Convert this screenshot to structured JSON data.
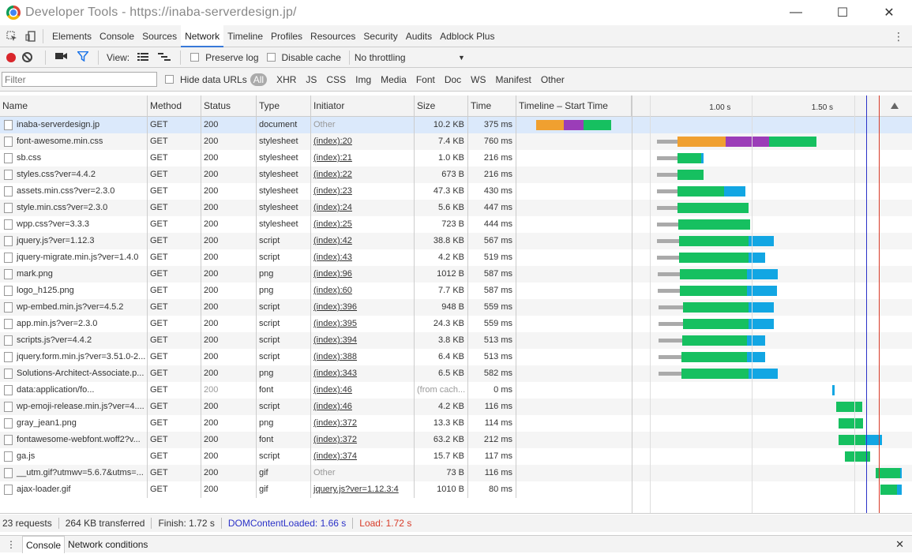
{
  "window": {
    "title": "Developer Tools - https://inaba-serverdesign.jp/",
    "minimize": "—",
    "maximize": "☐",
    "close": "✕"
  },
  "tabs": [
    "Elements",
    "Console",
    "Sources",
    "Network",
    "Timeline",
    "Profiles",
    "Resources",
    "Security",
    "Audits",
    "Adblock Plus"
  ],
  "active_tab": "Network",
  "toolbar": {
    "view_label": "View:",
    "preserve_log": "Preserve log",
    "disable_cache": "Disable cache",
    "throttling": "No throttling"
  },
  "filterbar": {
    "placeholder": "Filter",
    "hide_data_urls": "Hide data URLs",
    "types": [
      "All",
      "XHR",
      "JS",
      "CSS",
      "Img",
      "Media",
      "Font",
      "Doc",
      "WS",
      "Manifest",
      "Other"
    ]
  },
  "columns": [
    "Name",
    "Method",
    "Status",
    "Type",
    "Initiator",
    "Size",
    "Time",
    "Timeline – Start Time"
  ],
  "timeline_ticks": [
    "1.00 s",
    "1.50 s"
  ],
  "requests": [
    {
      "name": "inaba-serverdesign.jp",
      "method": "GET",
      "status": "200",
      "type": "document",
      "initiator": "Other",
      "size": "10.2 KB",
      "time": "375 ms",
      "selected": true
    },
    {
      "name": "font-awesome.min.css",
      "method": "GET",
      "status": "200",
      "type": "stylesheet",
      "initiator": "(index):20",
      "size": "7.4 KB",
      "time": "760 ms"
    },
    {
      "name": "sb.css",
      "method": "GET",
      "status": "200",
      "type": "stylesheet",
      "initiator": "(index):21",
      "size": "1.0 KB",
      "time": "216 ms"
    },
    {
      "name": "styles.css?ver=4.4.2",
      "method": "GET",
      "status": "200",
      "type": "stylesheet",
      "initiator": "(index):22",
      "size": "673 B",
      "time": "216 ms"
    },
    {
      "name": "assets.min.css?ver=2.3.0",
      "method": "GET",
      "status": "200",
      "type": "stylesheet",
      "initiator": "(index):23",
      "size": "47.3 KB",
      "time": "430 ms"
    },
    {
      "name": "style.min.css?ver=2.3.0",
      "method": "GET",
      "status": "200",
      "type": "stylesheet",
      "initiator": "(index):24",
      "size": "5.6 KB",
      "time": "447 ms"
    },
    {
      "name": "wpp.css?ver=3.3.3",
      "method": "GET",
      "status": "200",
      "type": "stylesheet",
      "initiator": "(index):25",
      "size": "723 B",
      "time": "444 ms"
    },
    {
      "name": "jquery.js?ver=1.12.3",
      "method": "GET",
      "status": "200",
      "type": "script",
      "initiator": "(index):42",
      "size": "38.8 KB",
      "time": "567 ms"
    },
    {
      "name": "jquery-migrate.min.js?ver=1.4.0",
      "method": "GET",
      "status": "200",
      "type": "script",
      "initiator": "(index):43",
      "size": "4.2 KB",
      "time": "519 ms"
    },
    {
      "name": "mark.png",
      "method": "GET",
      "status": "200",
      "type": "png",
      "initiator": "(index):96",
      "size": "1012 B",
      "time": "587 ms"
    },
    {
      "name": "logo_h125.png",
      "method": "GET",
      "status": "200",
      "type": "png",
      "initiator": "(index):60",
      "size": "7.7 KB",
      "time": "587 ms"
    },
    {
      "name": "wp-embed.min.js?ver=4.5.2",
      "method": "GET",
      "status": "200",
      "type": "script",
      "initiator": "(index):396",
      "size": "948 B",
      "time": "559 ms"
    },
    {
      "name": "app.min.js?ver=2.3.0",
      "method": "GET",
      "status": "200",
      "type": "script",
      "initiator": "(index):395",
      "size": "24.3 KB",
      "time": "559 ms"
    },
    {
      "name": "scripts.js?ver=4.4.2",
      "method": "GET",
      "status": "200",
      "type": "script",
      "initiator": "(index):394",
      "size": "3.8 KB",
      "time": "513 ms"
    },
    {
      "name": "jquery.form.min.js?ver=3.51.0-2...",
      "method": "GET",
      "status": "200",
      "type": "script",
      "initiator": "(index):388",
      "size": "6.4 KB",
      "time": "513 ms"
    },
    {
      "name": "Solutions-Architect-Associate.p...",
      "method": "GET",
      "status": "200",
      "type": "png",
      "initiator": "(index):343",
      "size": "6.5 KB",
      "time": "582 ms"
    },
    {
      "name": "data:application/fo...",
      "method": "GET",
      "status": "200",
      "type": "font",
      "initiator": "(index):46",
      "size": "(from cach...",
      "time": "0 ms",
      "grey": true
    },
    {
      "name": "wp-emoji-release.min.js?ver=4....",
      "method": "GET",
      "status": "200",
      "type": "script",
      "initiator": "(index):46",
      "size": "4.2 KB",
      "time": "116 ms"
    },
    {
      "name": "gray_jean1.png",
      "method": "GET",
      "status": "200",
      "type": "png",
      "initiator": "(index):372",
      "size": "13.3 KB",
      "time": "114 ms"
    },
    {
      "name": "fontawesome-webfont.woff2?v...",
      "method": "GET",
      "status": "200",
      "type": "font",
      "initiator": "(index):372",
      "size": "63.2 KB",
      "time": "212 ms"
    },
    {
      "name": "ga.js",
      "method": "GET",
      "status": "200",
      "type": "script",
      "initiator": "(index):374",
      "size": "15.7 KB",
      "time": "117 ms"
    },
    {
      "name": "__utm.gif?utmwv=5.6.7&utms=...",
      "method": "GET",
      "status": "200",
      "type": "gif",
      "initiator": "Other",
      "size": "73 B",
      "time": "116 ms"
    },
    {
      "name": "ajax-loader.gif",
      "method": "GET",
      "status": "200",
      "type": "gif",
      "initiator": "jquery.js?ver=1.12.3:4",
      "size": "1010 B",
      "time": "80 ms"
    }
  ],
  "waterfall_s": [
    [
      [
        0.046,
        0.18,
        "#f0a030"
      ],
      [
        0.18,
        0.277,
        "#9b3db8"
      ],
      [
        0.277,
        0.412,
        "#16c060"
      ]
    ],
    [
      [
        0.637,
        0.737,
        "#aaaaaa"
      ],
      [
        0.737,
        0.974,
        "#f0a030"
      ],
      [
        0.974,
        1.183,
        "#9b3db8"
      ],
      [
        1.183,
        1.415,
        "#16c060"
      ]
    ],
    [
      [
        0.637,
        0.737,
        "#aaaaaa"
      ],
      [
        0.737,
        0.853,
        "#16c060"
      ],
      [
        0.853,
        0.865,
        "#12a6e3"
      ]
    ],
    [
      [
        0.637,
        0.737,
        "#aaaaaa"
      ],
      [
        0.737,
        0.865,
        "#16c060"
      ]
    ],
    [
      [
        0.637,
        0.737,
        "#aaaaaa"
      ],
      [
        0.737,
        0.966,
        "#16c060"
      ],
      [
        0.966,
        1.067,
        "#12a6e3"
      ]
    ],
    [
      [
        0.637,
        0.737,
        "#aaaaaa"
      ],
      [
        0.737,
        1.086,
        "#16c060"
      ]
    ],
    [
      [
        0.637,
        0.741,
        "#aaaaaa"
      ],
      [
        0.741,
        1.09,
        "#16c060"
      ]
    ],
    [
      [
        0.637,
        0.745,
        "#aaaaaa"
      ],
      [
        0.745,
        1.086,
        "#16c060"
      ],
      [
        1.086,
        1.209,
        "#12a6e3"
      ]
    ],
    [
      [
        0.637,
        0.745,
        "#aaaaaa"
      ],
      [
        0.745,
        1.086,
        "#16c060"
      ],
      [
        1.086,
        1.165,
        "#12a6e3"
      ]
    ],
    [
      [
        0.64,
        0.748,
        "#aaaaaa"
      ],
      [
        0.748,
        1.075,
        "#16c060"
      ],
      [
        1.075,
        1.228,
        "#12a6e3"
      ]
    ],
    [
      [
        0.64,
        0.748,
        "#aaaaaa"
      ],
      [
        0.748,
        1.078,
        "#16c060"
      ],
      [
        1.078,
        1.224,
        "#12a6e3"
      ]
    ],
    [
      [
        0.644,
        0.763,
        "#aaaaaa"
      ],
      [
        0.763,
        1.086,
        "#16c060"
      ],
      [
        1.086,
        1.209,
        "#12a6e3"
      ]
    ],
    [
      [
        0.644,
        0.763,
        "#aaaaaa"
      ],
      [
        0.763,
        1.086,
        "#16c060"
      ],
      [
        1.086,
        1.209,
        "#12a6e3"
      ]
    ],
    [
      [
        0.644,
        0.759,
        "#aaaaaa"
      ],
      [
        0.759,
        1.078,
        "#16c060"
      ],
      [
        1.078,
        1.165,
        "#12a6e3"
      ]
    ],
    [
      [
        0.644,
        0.755,
        "#aaaaaa"
      ],
      [
        0.755,
        1.078,
        "#16c060"
      ],
      [
        1.078,
        1.165,
        "#12a6e3"
      ]
    ],
    [
      [
        0.644,
        0.755,
        "#aaaaaa"
      ],
      [
        0.755,
        1.086,
        "#16c060"
      ],
      [
        1.086,
        1.228,
        "#12a6e3"
      ]
    ],
    [
      [
        1.494,
        1.505,
        "#12a6e3"
      ]
    ],
    [
      [
        1.513,
        1.639,
        "#16c060"
      ]
    ],
    [
      [
        1.524,
        1.643,
        "#16c060"
      ]
    ],
    [
      [
        1.524,
        1.654,
        "#16c060"
      ],
      [
        1.654,
        1.738,
        "#12a6e3"
      ]
    ],
    [
      [
        1.555,
        1.677,
        "#16c060"
      ]
    ],
    [
      [
        1.704,
        1.826,
        "#16c060"
      ],
      [
        1.826,
        1.833,
        "#12a6e3"
      ]
    ],
    [
      [
        1.73,
        1.811,
        "#16c060"
      ],
      [
        1.811,
        1.833,
        "#12a6e3"
      ]
    ]
  ],
  "dom_content_loaded_s": 1.66,
  "load_s": 1.72,
  "status": {
    "requests": "23 requests",
    "transferred": "264 KB transferred",
    "finish": "Finish: 1.72 s",
    "dcl": "DOMContentLoaded: 1.66 s",
    "load": "Load: 1.72 s"
  },
  "drawer": {
    "tab1": "Console",
    "tab2": "Network conditions",
    "close": "✕"
  },
  "colors": {
    "dcl": "#2b32c8",
    "load": "#d83b28",
    "selected_row": "#dbe9fb"
  }
}
